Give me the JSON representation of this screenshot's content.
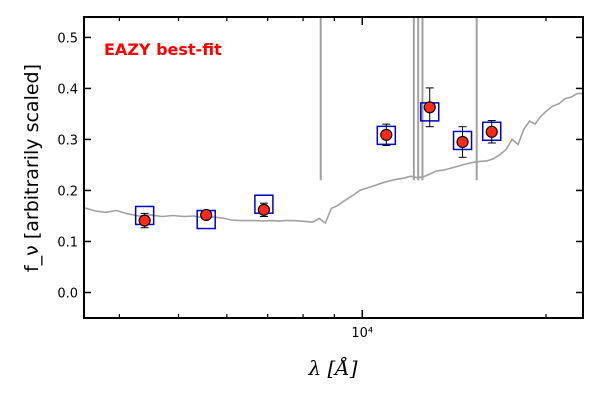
{
  "chart_data": {
    "type": "scatter",
    "title": "",
    "xlabel": "λ [Å]",
    "ylabel": "f_ν [arbitrarily scaled]",
    "xscale": "log",
    "xlim": [
      3500,
      23000
    ],
    "ylim": [
      -0.05,
      0.54
    ],
    "yticks": [
      0.0,
      0.1,
      0.2,
      0.3,
      0.4,
      0.5
    ],
    "ytick_labels": [
      "0.0",
      "0.1",
      "0.2",
      "0.3",
      "0.4",
      "0.5"
    ],
    "xticks_major": [
      10000
    ],
    "xtick_labels": [
      "10⁴"
    ],
    "xticks_minor": [
      4000,
      5000,
      6000,
      7000,
      8000,
      9000,
      20000
    ],
    "grid": false,
    "annotation": {
      "text": "EAZY best-fit",
      "color": "#ff0000"
    },
    "series": [
      {
        "role": "template",
        "color": "#a0a0a0",
        "x": [
          3500,
          3650,
          3800,
          3950,
          4100,
          4300,
          4500,
          4700,
          4900,
          5100,
          5300,
          5500,
          5700,
          5900,
          6100,
          6300,
          6500,
          6700,
          6900,
          7100,
          7300,
          7500,
          7700,
          7900,
          8100,
          8300,
          8500,
          8700,
          8900,
          9100,
          9300,
          9500,
          9700,
          9900,
          10200,
          10500,
          10800,
          11100,
          11400,
          11700,
          12000,
          12300,
          12600,
          12900,
          13200,
          13600,
          14000,
          14400,
          14800,
          15200,
          15600,
          16000,
          16400,
          16800,
          17200,
          17600,
          18000,
          18400,
          18800,
          19200,
          19600,
          20000,
          20500,
          21000,
          21500,
          22000,
          22500,
          23000
        ],
        "y": [
          0.166,
          0.16,
          0.157,
          0.161,
          0.155,
          0.15,
          0.152,
          0.149,
          0.151,
          0.149,
          0.15,
          0.146,
          0.148,
          0.146,
          0.142,
          0.141,
          0.141,
          0.141,
          0.14,
          0.141,
          0.14,
          0.141,
          0.141,
          0.14,
          0.139,
          0.138,
          0.145,
          0.136,
          0.165,
          0.17,
          0.178,
          0.185,
          0.192,
          0.2,
          0.205,
          0.21,
          0.215,
          0.219,
          0.222,
          0.224,
          0.228,
          0.225,
          0.227,
          0.232,
          0.238,
          0.24,
          0.244,
          0.248,
          0.252,
          0.255,
          0.257,
          0.258,
          0.262,
          0.27,
          0.28,
          0.3,
          0.29,
          0.32,
          0.336,
          0.33,
          0.345,
          0.355,
          0.365,
          0.37,
          0.38,
          0.383,
          0.39,
          0.39
        ]
      },
      {
        "role": "template-spikes",
        "color": "#a0a0a0",
        "x": [
          8550,
          12150,
          12350,
          12550,
          15400
        ],
        "y": [
          0.54,
          0.54,
          0.54,
          0.54,
          0.54
        ]
      },
      {
        "role": "model-photometry",
        "color": "#0000cc",
        "marker": "open-square",
        "x": [
          4400,
          5550,
          6900,
          10950,
          12900,
          14600,
          16300
        ],
        "y": [
          0.151,
          0.143,
          0.173,
          0.308,
          0.354,
          0.298,
          0.316
        ]
      },
      {
        "role": "observed",
        "color": "#ff2a1a",
        "marker": "filled-circle",
        "x": [
          4400,
          5550,
          6900,
          10950,
          12900,
          14600,
          16300
        ],
        "y": [
          0.141,
          0.152,
          0.162,
          0.309,
          0.363,
          0.295,
          0.315
        ],
        "yerr": [
          0.014,
          0.006,
          0.013,
          0.021,
          0.038,
          0.03,
          0.022
        ]
      }
    ]
  }
}
